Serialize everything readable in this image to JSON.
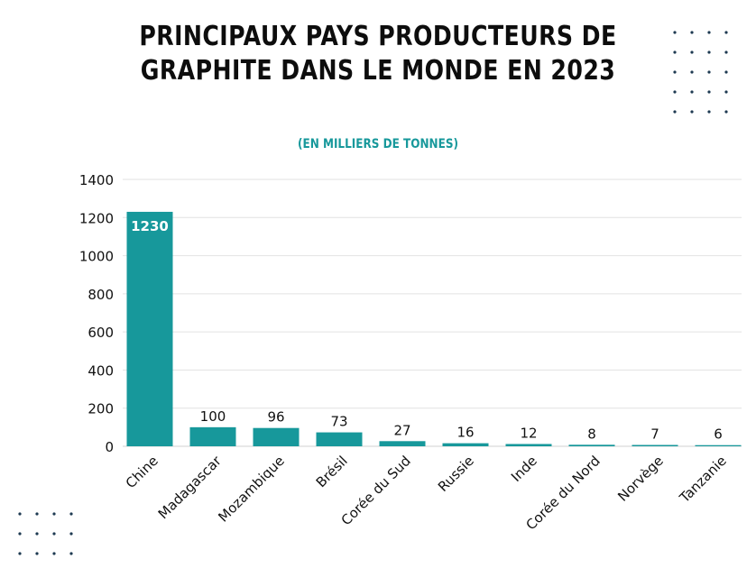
{
  "title_lines": [
    "PRINCIPAUX PAYS PRODUCTEURS DE",
    "GRAPHITE DANS LE MONDE EN 2023"
  ],
  "subtitle": "(EN MILLIERS DE TONNES)",
  "colors": {
    "bar": "#17989b",
    "title": "#0d0d0d",
    "accent": "#17989b",
    "dots": "#1e3a52"
  },
  "chart_data": {
    "type": "bar",
    "title": "PRINCIPAUX PAYS PRODUCTEURS DE GRAPHITE DANS LE MONDE EN 2023",
    "subtitle": "(EN MILLIERS DE TONNES)",
    "categories": [
      "Chine",
      "Madagascar",
      "Mozambique",
      "Brésil",
      "Corée du Sud",
      "Russie",
      "Inde",
      "Corée du Nord",
      "Norvège",
      "Tanzanie"
    ],
    "values": [
      1230,
      100,
      96,
      73,
      27,
      16,
      12,
      8,
      7,
      6
    ],
    "ylim": [
      0,
      1400
    ],
    "yticks": [
      0,
      200,
      400,
      600,
      800,
      1000,
      1200,
      1400
    ],
    "grid": true,
    "xlabel": "",
    "ylabel": ""
  }
}
